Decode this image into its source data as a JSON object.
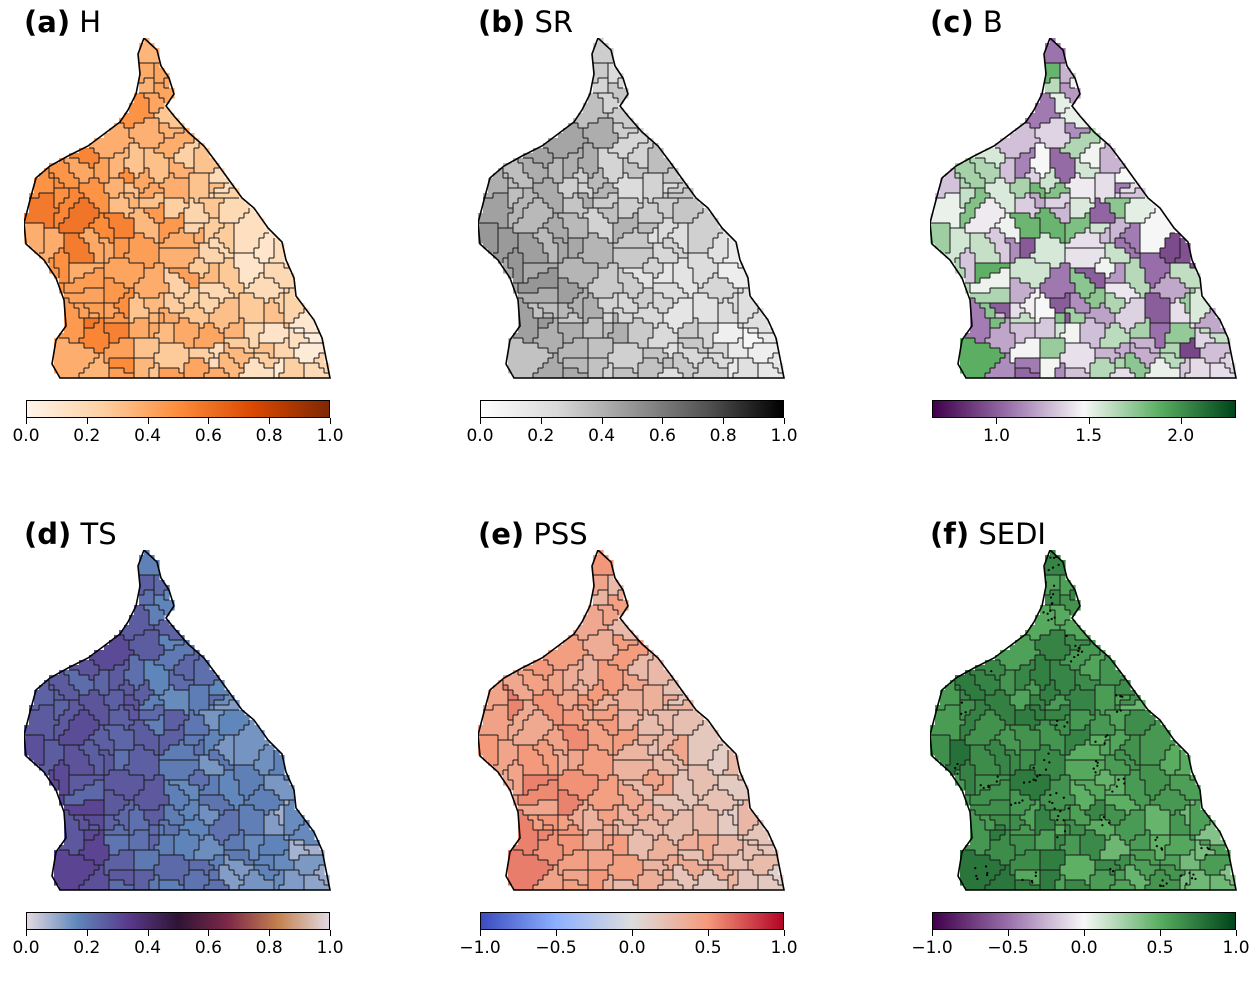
{
  "panels": [
    {
      "id": "a",
      "letter": "(a)",
      "metric": "H",
      "colormap": "Oranges",
      "vmin": 0.0,
      "vmax": 1.0,
      "cmap_stops": [
        "#fff5eb",
        "#fdd0a2",
        "#fd8d3c",
        "#d94801",
        "#7f2704"
      ],
      "tick_values": [
        0.0,
        0.2,
        0.4,
        0.6,
        0.8,
        1.0
      ],
      "tick_labels": [
        "0.0",
        "0.2",
        "0.4",
        "0.6",
        "0.8",
        "1.0"
      ],
      "west_value": 0.48,
      "east_value": 0.12,
      "spread": 0.12,
      "stipple": false
    },
    {
      "id": "b",
      "letter": "(b)",
      "metric": "SR",
      "colormap": "Greys",
      "vmin": 0.0,
      "vmax": 1.0,
      "cmap_stops": [
        "#ffffff",
        "#d9d9d9",
        "#969696",
        "#525252",
        "#000000"
      ],
      "tick_values": [
        0.0,
        0.2,
        0.4,
        0.6,
        0.8,
        1.0
      ],
      "tick_labels": [
        "0.0",
        "0.2",
        "0.4",
        "0.6",
        "0.8",
        "1.0"
      ],
      "west_value": 0.42,
      "east_value": 0.12,
      "spread": 0.09,
      "stipple": false
    },
    {
      "id": "c",
      "letter": "(c)",
      "metric": "B",
      "colormap": "PRGn",
      "vmin": 0.65,
      "vmax": 2.3,
      "cmap_stops": [
        "#40004b",
        "#9970ab",
        "#f7f7f7",
        "#5aae61",
        "#00441b"
      ],
      "tick_values": [
        1.0,
        1.5,
        2.0
      ],
      "tick_labels": [
        "1.0",
        "1.5",
        "2.0"
      ],
      "west_value": 1.45,
      "east_value": 1.3,
      "spread": 0.45,
      "stipple": false
    },
    {
      "id": "d",
      "letter": "(d)",
      "metric": "TS",
      "colormap": "twilight",
      "vmin": 0.0,
      "vmax": 1.0,
      "cmap_stops": [
        "#e2d9e2",
        "#5f86bb",
        "#5a3b8c",
        "#2f1436",
        "#7e2948",
        "#c4824f",
        "#e2d9e2"
      ],
      "tick_values": [
        0.0,
        0.2,
        0.4,
        0.6,
        0.8,
        1.0
      ],
      "tick_labels": [
        "0.0",
        "0.2",
        "0.4",
        "0.6",
        "0.8",
        "1.0"
      ],
      "west_value": 0.27,
      "east_value": 0.1,
      "spread": 0.05,
      "stipple": false
    },
    {
      "id": "e",
      "letter": "(e)",
      "metric": "PSS",
      "colormap": "coolwarm",
      "vmin": -1.0,
      "vmax": 1.0,
      "cmap_stops": [
        "#3b4cc0",
        "#8db0fe",
        "#dddddd",
        "#f49a7b",
        "#b40426"
      ],
      "tick_values": [
        -1.0,
        -0.5,
        0.0,
        0.5,
        1.0
      ],
      "tick_labels": [
        "−1.0",
        "−0.5",
        "0.0",
        "0.5",
        "1.0"
      ],
      "west_value": 0.5,
      "east_value": 0.15,
      "spread": 0.12,
      "stipple": false
    },
    {
      "id": "f",
      "letter": "(f)",
      "metric": "SEDI",
      "colormap": "PRGn",
      "vmin": -1.0,
      "vmax": 1.0,
      "cmap_stops": [
        "#40004b",
        "#9970ab",
        "#f7f7f7",
        "#5aae61",
        "#00441b"
      ],
      "tick_values": [
        -1.0,
        -0.5,
        0.0,
        0.5,
        1.0
      ],
      "tick_labels": [
        "−1.0",
        "−0.5",
        "0.0",
        "0.5",
        "1.0"
      ],
      "west_value": 0.68,
      "east_value": 0.45,
      "spread": 0.12,
      "stipple": true
    }
  ]
}
